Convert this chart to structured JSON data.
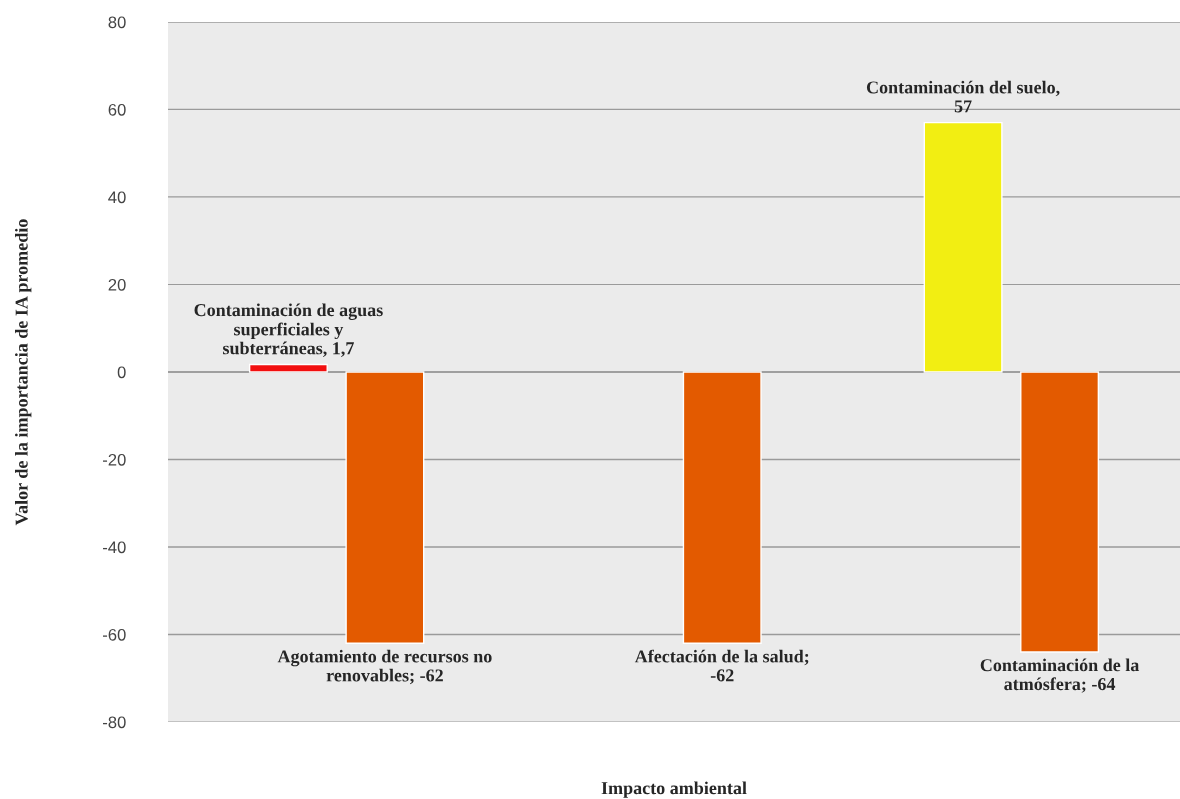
{
  "chart_data": {
    "type": "bar",
    "xlabel": "Impacto ambiental",
    "ylabel": "Valor de la importancia de IA promedio",
    "categories": [
      null,
      null,
      null
    ],
    "series": [
      {
        "colors": [
          "#f20f0f",
          null,
          "#f2ee12"
        ],
        "values": [
          1.7,
          null,
          57
        ],
        "value_labels": [
          "Contaminación de aguas superficiales y subterráneas, 1,7",
          null,
          "Contaminación del suelo, 57"
        ]
      },
      {
        "color": "#e35a00",
        "values": [
          -62,
          -62,
          -64
        ],
        "value_labels": [
          "Agotamiento de recursos no renovables; -62",
          "Afectación de la salud; -62",
          "Contaminación de la atmósfera; -64"
        ]
      }
    ],
    "ylim": [
      -80,
      80
    ],
    "yticks": [
      -80,
      -60,
      -40,
      -20,
      0,
      20,
      40,
      60,
      80
    ],
    "grid": "y",
    "legend": false
  }
}
